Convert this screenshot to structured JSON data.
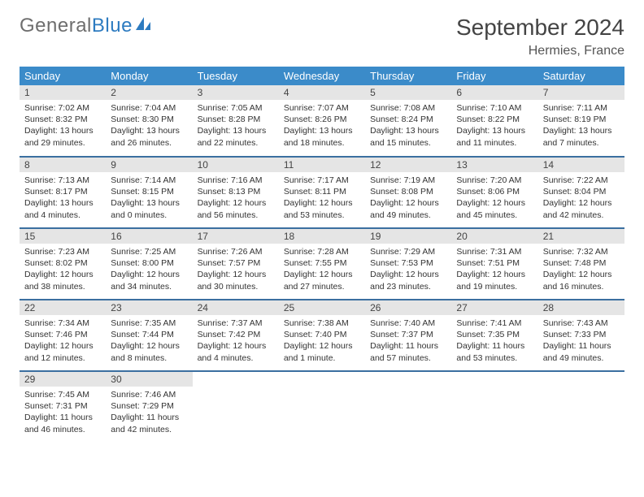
{
  "brand": {
    "part1": "General",
    "part2": "Blue"
  },
  "title": "September 2024",
  "location": "Hermies, France",
  "colors": {
    "header_bg": "#3b8bc9",
    "rule": "#3b6fa0",
    "daynum_bg": "#e5e5e5",
    "brand_gray": "#6e6e6e",
    "brand_blue": "#2d7bc0"
  },
  "weekdays": [
    "Sunday",
    "Monday",
    "Tuesday",
    "Wednesday",
    "Thursday",
    "Friday",
    "Saturday"
  ],
  "weeks": [
    [
      {
        "n": "1",
        "sunrise": "7:02 AM",
        "sunset": "8:32 PM",
        "daylight": "13 hours and 29 minutes."
      },
      {
        "n": "2",
        "sunrise": "7:04 AM",
        "sunset": "8:30 PM",
        "daylight": "13 hours and 26 minutes."
      },
      {
        "n": "3",
        "sunrise": "7:05 AM",
        "sunset": "8:28 PM",
        "daylight": "13 hours and 22 minutes."
      },
      {
        "n": "4",
        "sunrise": "7:07 AM",
        "sunset": "8:26 PM",
        "daylight": "13 hours and 18 minutes."
      },
      {
        "n": "5",
        "sunrise": "7:08 AM",
        "sunset": "8:24 PM",
        "daylight": "13 hours and 15 minutes."
      },
      {
        "n": "6",
        "sunrise": "7:10 AM",
        "sunset": "8:22 PM",
        "daylight": "13 hours and 11 minutes."
      },
      {
        "n": "7",
        "sunrise": "7:11 AM",
        "sunset": "8:19 PM",
        "daylight": "13 hours and 7 minutes."
      }
    ],
    [
      {
        "n": "8",
        "sunrise": "7:13 AM",
        "sunset": "8:17 PM",
        "daylight": "13 hours and 4 minutes."
      },
      {
        "n": "9",
        "sunrise": "7:14 AM",
        "sunset": "8:15 PM",
        "daylight": "13 hours and 0 minutes."
      },
      {
        "n": "10",
        "sunrise": "7:16 AM",
        "sunset": "8:13 PM",
        "daylight": "12 hours and 56 minutes."
      },
      {
        "n": "11",
        "sunrise": "7:17 AM",
        "sunset": "8:11 PM",
        "daylight": "12 hours and 53 minutes."
      },
      {
        "n": "12",
        "sunrise": "7:19 AM",
        "sunset": "8:08 PM",
        "daylight": "12 hours and 49 minutes."
      },
      {
        "n": "13",
        "sunrise": "7:20 AM",
        "sunset": "8:06 PM",
        "daylight": "12 hours and 45 minutes."
      },
      {
        "n": "14",
        "sunrise": "7:22 AM",
        "sunset": "8:04 PM",
        "daylight": "12 hours and 42 minutes."
      }
    ],
    [
      {
        "n": "15",
        "sunrise": "7:23 AM",
        "sunset": "8:02 PM",
        "daylight": "12 hours and 38 minutes."
      },
      {
        "n": "16",
        "sunrise": "7:25 AM",
        "sunset": "8:00 PM",
        "daylight": "12 hours and 34 minutes."
      },
      {
        "n": "17",
        "sunrise": "7:26 AM",
        "sunset": "7:57 PM",
        "daylight": "12 hours and 30 minutes."
      },
      {
        "n": "18",
        "sunrise": "7:28 AM",
        "sunset": "7:55 PM",
        "daylight": "12 hours and 27 minutes."
      },
      {
        "n": "19",
        "sunrise": "7:29 AM",
        "sunset": "7:53 PM",
        "daylight": "12 hours and 23 minutes."
      },
      {
        "n": "20",
        "sunrise": "7:31 AM",
        "sunset": "7:51 PM",
        "daylight": "12 hours and 19 minutes."
      },
      {
        "n": "21",
        "sunrise": "7:32 AM",
        "sunset": "7:48 PM",
        "daylight": "12 hours and 16 minutes."
      }
    ],
    [
      {
        "n": "22",
        "sunrise": "7:34 AM",
        "sunset": "7:46 PM",
        "daylight": "12 hours and 12 minutes."
      },
      {
        "n": "23",
        "sunrise": "7:35 AM",
        "sunset": "7:44 PM",
        "daylight": "12 hours and 8 minutes."
      },
      {
        "n": "24",
        "sunrise": "7:37 AM",
        "sunset": "7:42 PM",
        "daylight": "12 hours and 4 minutes."
      },
      {
        "n": "25",
        "sunrise": "7:38 AM",
        "sunset": "7:40 PM",
        "daylight": "12 hours and 1 minute."
      },
      {
        "n": "26",
        "sunrise": "7:40 AM",
        "sunset": "7:37 PM",
        "daylight": "11 hours and 57 minutes."
      },
      {
        "n": "27",
        "sunrise": "7:41 AM",
        "sunset": "7:35 PM",
        "daylight": "11 hours and 53 minutes."
      },
      {
        "n": "28",
        "sunrise": "7:43 AM",
        "sunset": "7:33 PM",
        "daylight": "11 hours and 49 minutes."
      }
    ],
    [
      {
        "n": "29",
        "sunrise": "7:45 AM",
        "sunset": "7:31 PM",
        "daylight": "11 hours and 46 minutes."
      },
      {
        "n": "30",
        "sunrise": "7:46 AM",
        "sunset": "7:29 PM",
        "daylight": "11 hours and 42 minutes."
      },
      null,
      null,
      null,
      null,
      null
    ]
  ],
  "labels": {
    "sunrise": "Sunrise:",
    "sunset": "Sunset:",
    "daylight": "Daylight:"
  }
}
